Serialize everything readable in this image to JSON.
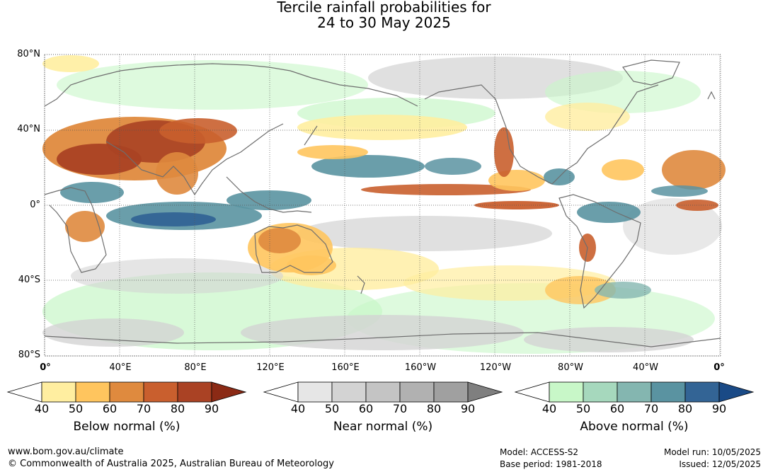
{
  "title_line1": "Tercile rainfall probabilities for",
  "title_line2": "24 to 30 May 2025",
  "map": {
    "lat_labels": [
      "80°N",
      "40°N",
      "0°",
      "40°S",
      "80°S"
    ],
    "lon_labels": [
      "0°",
      "40°E",
      "80°E",
      "120°E",
      "160°E",
      "160°W",
      "120°W",
      "80°W",
      "40°W",
      "0°"
    ]
  },
  "legends": [
    {
      "title": "Below normal (%)",
      "ticks": [
        "40",
        "50",
        "60",
        "70",
        "80",
        "90"
      ],
      "colors": [
        "#ffeea0",
        "#ffc55e",
        "#df8a3e",
        "#c95f2e",
        "#aa4224",
        "#8b2a15"
      ]
    },
    {
      "title": "Near normal (%)",
      "ticks": [
        "40",
        "50",
        "60",
        "70",
        "80",
        "90"
      ],
      "colors": [
        "#e6e6e6",
        "#d3d3d3",
        "#c4c4c4",
        "#b1b1b1",
        "#a0a0a0",
        "#7f7f7f"
      ]
    },
    {
      "title": "Above normal (%)",
      "ticks": [
        "40",
        "50",
        "60",
        "70",
        "80",
        "90"
      ],
      "colors": [
        "#c8f7c8",
        "#a6d8bd",
        "#84b6b0",
        "#5a93a1",
        "#336495",
        "#1a4a86"
      ]
    }
  ],
  "footer": {
    "url": "www.bom.gov.au/climate",
    "copyright": "© Commonwealth of Australia 2025, Australian Bureau of Meteorology",
    "model": "Model: ACCESS-S2",
    "base_period": "Base period: 1981-2018",
    "model_run": "Model run: 10/05/2025",
    "issued": "Issued: 12/05/2025"
  }
}
